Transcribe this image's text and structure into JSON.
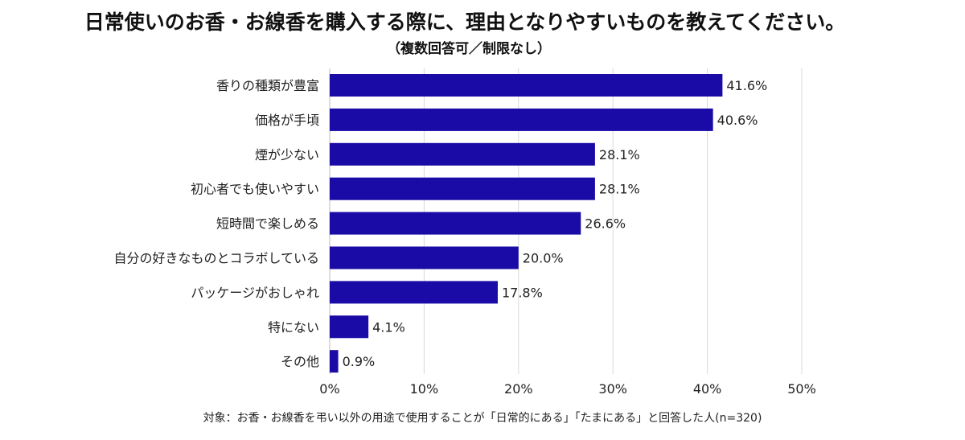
{
  "chart_data": {
    "type": "bar",
    "orientation": "horizontal",
    "title": "日常使いのお香・お線香を購入する際に、理由となりやすいものを教えてください。",
    "subtitle": "（複数回答可／制限なし）",
    "categories": [
      "香りの種類が豊富",
      "価格が手頃",
      "煙が少ない",
      "初心者でも使いやすい",
      "短時間で楽しめる",
      "自分の好きなものとコラボしている",
      "パッケージがおしゃれ",
      "特にない",
      "その他"
    ],
    "values": [
      41.6,
      40.6,
      28.1,
      28.1,
      26.6,
      20.0,
      17.8,
      4.1,
      0.9
    ],
    "value_labels": [
      "41.6%",
      "40.6%",
      "28.1%",
      "28.1%",
      "26.6%",
      "20.0%",
      "17.8%",
      "4.1%",
      "0.9%"
    ],
    "xlim": [
      0,
      50
    ],
    "xticks": [
      0,
      10,
      20,
      30,
      40,
      50
    ],
    "xtick_labels": [
      "0%",
      "10%",
      "20%",
      "30%",
      "40%",
      "50%"
    ],
    "grid": true,
    "bar_color": "#1a0aa6",
    "note": "対象：お香・お線香を弔い以外の用途で使用することが「日常的にある」「たまにある」と回答した人(n=320)"
  }
}
